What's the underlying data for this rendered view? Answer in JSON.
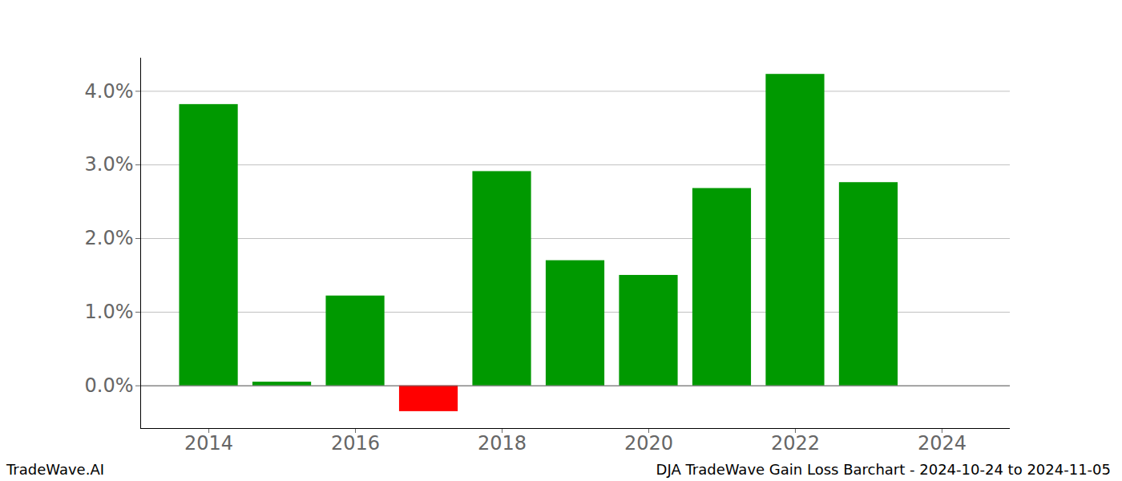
{
  "chart_data": {
    "type": "bar",
    "title": "DJA TradeWave Gain Loss Barchart - 2024-10-24 to 2024-11-05",
    "annotations": [
      "TradeWave.AI"
    ],
    "x": [
      2014,
      2015,
      2016,
      2017,
      2018,
      2019,
      2020,
      2021,
      2022,
      2023
    ],
    "values": [
      3.82,
      0.05,
      1.22,
      -0.35,
      2.91,
      1.7,
      1.5,
      2.68,
      4.23,
      2.76
    ],
    "colors": [
      "#009900",
      "#009900",
      "#009900",
      "#ff0000",
      "#009900",
      "#009900",
      "#009900",
      "#009900",
      "#009900",
      "#009900"
    ],
    "xlim": [
      2013.07,
      2024.93
    ],
    "xticks": [
      2014,
      2016,
      2018,
      2020,
      2022,
      2024
    ],
    "ylim": [
      -0.58,
      4.45
    ],
    "yticks": [
      {
        "value": 0,
        "label": "0.0%"
      },
      {
        "value": 1,
        "label": "1.0%"
      },
      {
        "value": 2,
        "label": "2.0%"
      },
      {
        "value": 3,
        "label": "3.0%"
      },
      {
        "value": 4,
        "label": "4.0%"
      }
    ],
    "grid": true
  }
}
